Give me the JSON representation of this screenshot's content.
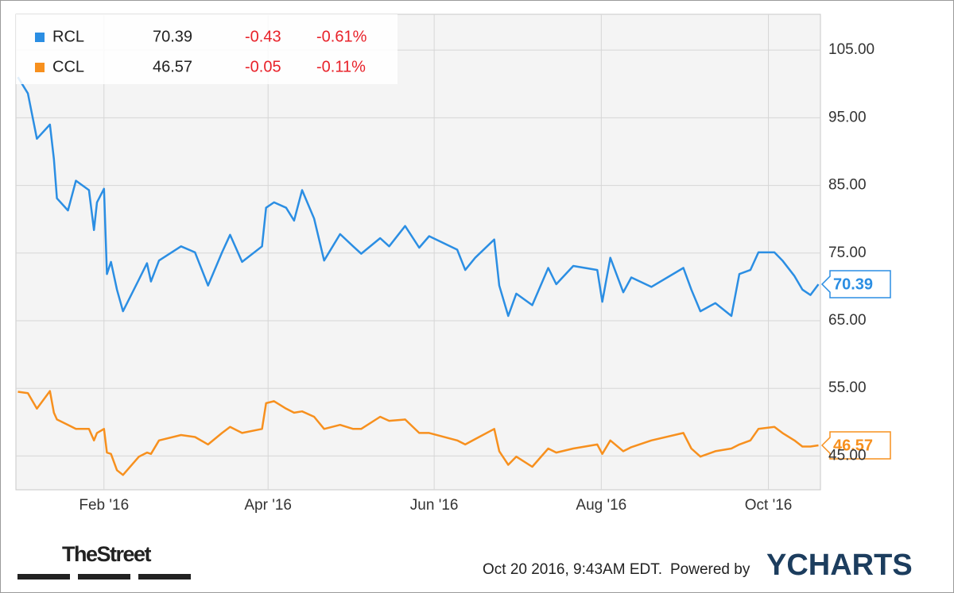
{
  "chart_data": {
    "type": "line",
    "x": [
      2015.999,
      2016.009,
      2016.018,
      2016.031,
      2016.035,
      2016.038,
      2016.049,
      2016.057,
      2016.07,
      2016.075,
      2016.078,
      2016.085,
      2016.088,
      2016.092,
      2016.098,
      2016.104,
      2016.12,
      2016.128,
      2016.132,
      2016.14,
      2016.162,
      2016.176,
      2016.189,
      2016.203,
      2016.211,
      2016.223,
      2016.243,
      2016.247,
      2016.255,
      2016.267,
      2016.275,
      2016.283,
      2016.295,
      2016.305,
      2016.321,
      2016.334,
      2016.342,
      2016.361,
      2016.37,
      2016.386,
      2016.4,
      2016.41,
      2016.438,
      2016.446,
      2016.456,
      2016.475,
      2016.48,
      2016.489,
      2016.497,
      2016.513,
      2016.529,
      2016.537,
      2016.554,
      2016.578,
      2016.583,
      2016.591,
      2016.604,
      2016.612,
      2016.632,
      2016.664,
      2016.672,
      2016.681,
      2016.696,
      2016.712,
      2016.72,
      2016.731,
      2016.739,
      2016.755,
      2016.763,
      2016.775,
      2016.783,
      2016.791,
      2016.799
    ],
    "series": [
      {
        "name": "RCL",
        "color": "#2b8ee3",
        "last": 70.39,
        "change": -0.43,
        "change_pct": "-0.61%",
        "values": [
          101.0,
          98.6,
          91.9,
          94.0,
          88.9,
          83.1,
          81.3,
          85.7,
          84.3,
          78.4,
          82.5,
          84.5,
          71.9,
          73.7,
          69.6,
          66.4,
          71.1,
          73.5,
          70.8,
          73.9,
          76.0,
          75.1,
          70.2,
          75.1,
          77.7,
          73.7,
          76.0,
          81.7,
          82.5,
          81.7,
          79.8,
          84.3,
          80.1,
          73.9,
          77.8,
          76.0,
          74.9,
          77.2,
          76.0,
          79.0,
          75.8,
          77.5,
          75.5,
          72.5,
          74.3,
          77.0,
          70.2,
          65.7,
          69.0,
          67.3,
          72.8,
          70.4,
          73.1,
          72.5,
          67.8,
          74.3,
          69.2,
          71.4,
          70.0,
          72.8,
          69.6,
          66.4,
          67.6,
          65.7,
          71.9,
          72.5,
          75.1,
          75.1,
          73.9,
          71.6,
          69.6,
          68.8,
          70.39
        ]
      },
      {
        "name": "CCL",
        "color": "#f7901e",
        "last": 46.57,
        "change": -0.05,
        "change_pct": "-0.11%",
        "values": [
          54.5,
          54.3,
          52.0,
          54.6,
          51.4,
          50.4,
          49.6,
          49.0,
          49.0,
          47.3,
          48.4,
          49.0,
          45.5,
          45.3,
          42.9,
          42.2,
          44.9,
          45.5,
          45.3,
          47.3,
          48.1,
          47.8,
          46.7,
          48.4,
          49.3,
          48.4,
          49.0,
          52.8,
          53.1,
          52.0,
          51.4,
          51.6,
          50.8,
          49.0,
          49.6,
          49.0,
          49.0,
          50.8,
          50.2,
          50.4,
          48.4,
          48.4,
          47.3,
          46.7,
          47.5,
          49.0,
          45.7,
          43.7,
          44.9,
          43.4,
          46.1,
          45.5,
          46.1,
          46.7,
          45.3,
          47.3,
          45.7,
          46.3,
          47.3,
          48.4,
          46.1,
          44.9,
          45.7,
          46.1,
          46.7,
          47.3,
          49.0,
          49.3,
          48.4,
          47.3,
          46.4,
          46.4,
          46.57
        ]
      }
    ],
    "xlim": [
      2015.997,
      2016.801
    ],
    "xticks": [
      {
        "value": 2016.085,
        "label": "Feb '16"
      },
      {
        "value": 2016.249,
        "label": "Apr '16"
      },
      {
        "value": 2016.415,
        "label": "Jun '16"
      },
      {
        "value": 2016.582,
        "label": "Aug '16"
      },
      {
        "value": 2016.749,
        "label": "Oct '16"
      }
    ],
    "ylim": [
      40,
      110.3
    ],
    "yticks": [
      {
        "value": 45,
        "label": "45.00"
      },
      {
        "value": 55,
        "label": "55.00"
      },
      {
        "value": 65,
        "label": "65.00"
      },
      {
        "value": 75,
        "label": "75.00"
      },
      {
        "value": 85,
        "label": "85.00"
      },
      {
        "value": 95,
        "label": "95.00"
      },
      {
        "value": 105,
        "label": "105.00"
      }
    ],
    "grid": true
  },
  "footer": {
    "logo": "TheStreet",
    "timestamp": "Oct 20 2016, 9:43AM EDT.",
    "powered_by": "Powered by",
    "brand": "YCHARTS"
  }
}
